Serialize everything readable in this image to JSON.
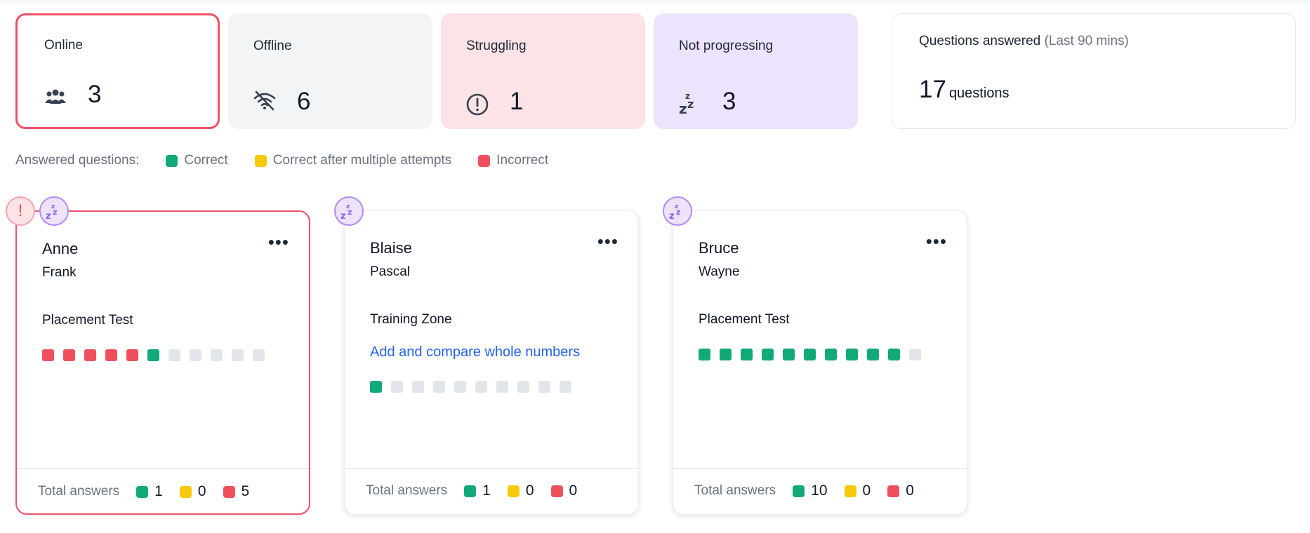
{
  "stats": {
    "online": {
      "label": "Online",
      "value": "3"
    },
    "offline": {
      "label": "Offline",
      "value": "6"
    },
    "struggling": {
      "label": "Struggling",
      "value": "1"
    },
    "not_progressing": {
      "label": "Not progressing",
      "value": "3"
    },
    "answered": {
      "label": "Questions answered",
      "period": "(Last 90 mins)",
      "value": "17",
      "unit": "questions"
    }
  },
  "legend": {
    "title": "Answered questions:",
    "correct": "Correct",
    "multiple": "Correct after multiple attempts",
    "incorrect": "Incorrect"
  },
  "colors": {
    "correct": "#10a977",
    "multiple": "#f8c80b",
    "incorrect": "#f0505e",
    "unanswered": "#e2e6ea",
    "alert": "#ef5169"
  },
  "students": [
    {
      "first": "Anne",
      "last": "Frank",
      "activity": "Placement Test",
      "topic": "",
      "answers": [
        "incorrect",
        "incorrect",
        "incorrect",
        "incorrect",
        "incorrect",
        "correct",
        "none",
        "none",
        "none",
        "none",
        "none"
      ],
      "totals_label": "Total answers",
      "correct": "1",
      "multiple": "0",
      "incorrect": "5",
      "menu": "•••",
      "badges": [
        "alert",
        "sleep"
      ],
      "highlight": true
    },
    {
      "first": "Blaise",
      "last": "Pascal",
      "activity": "Training Zone",
      "topic": "Add and compare whole numbers",
      "answers": [
        "correct",
        "none",
        "none",
        "none",
        "none",
        "none",
        "none",
        "none",
        "none",
        "none"
      ],
      "totals_label": "Total answers",
      "correct": "1",
      "multiple": "0",
      "incorrect": "0",
      "menu": "•••",
      "badges": [
        "sleep"
      ],
      "highlight": false
    },
    {
      "first": "Bruce",
      "last": "Wayne",
      "activity": "Placement Test",
      "topic": "",
      "answers": [
        "correct",
        "correct",
        "correct",
        "correct",
        "correct",
        "correct",
        "correct",
        "correct",
        "correct",
        "correct",
        "none"
      ],
      "totals_label": "Total answers",
      "correct": "10",
      "multiple": "0",
      "incorrect": "0",
      "menu": "•••",
      "badges": [
        "sleep"
      ],
      "highlight": false
    }
  ],
  "alert_badge_glyph": "!"
}
